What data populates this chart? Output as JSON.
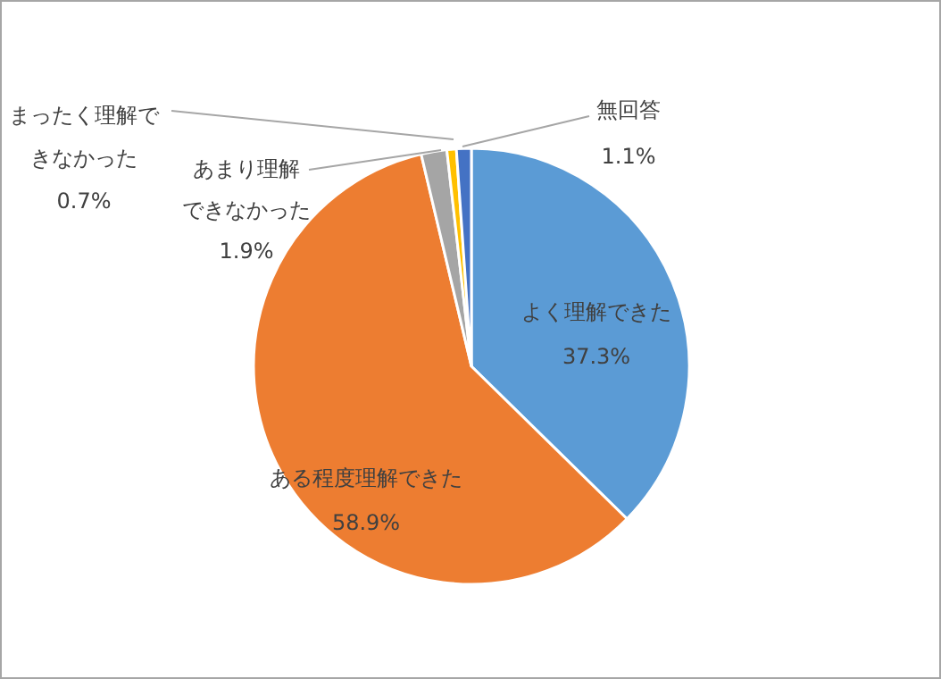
{
  "chart_data": {
    "type": "pie",
    "categories": [
      "よく理解できた",
      "ある程度理解できた",
      "あまり理解できなかった",
      "まったく理解できなかった",
      "無回答"
    ],
    "values": [
      37.3,
      58.9,
      1.9,
      0.7,
      1.1
    ],
    "colors": [
      "#5b9bd5",
      "#ed7d31",
      "#a5a5a5",
      "#ffc000",
      "#4472c4"
    ],
    "value_labels": [
      "37.3%",
      "58.9%",
      "1.9%",
      "0.7%",
      "1.1%"
    ]
  }
}
